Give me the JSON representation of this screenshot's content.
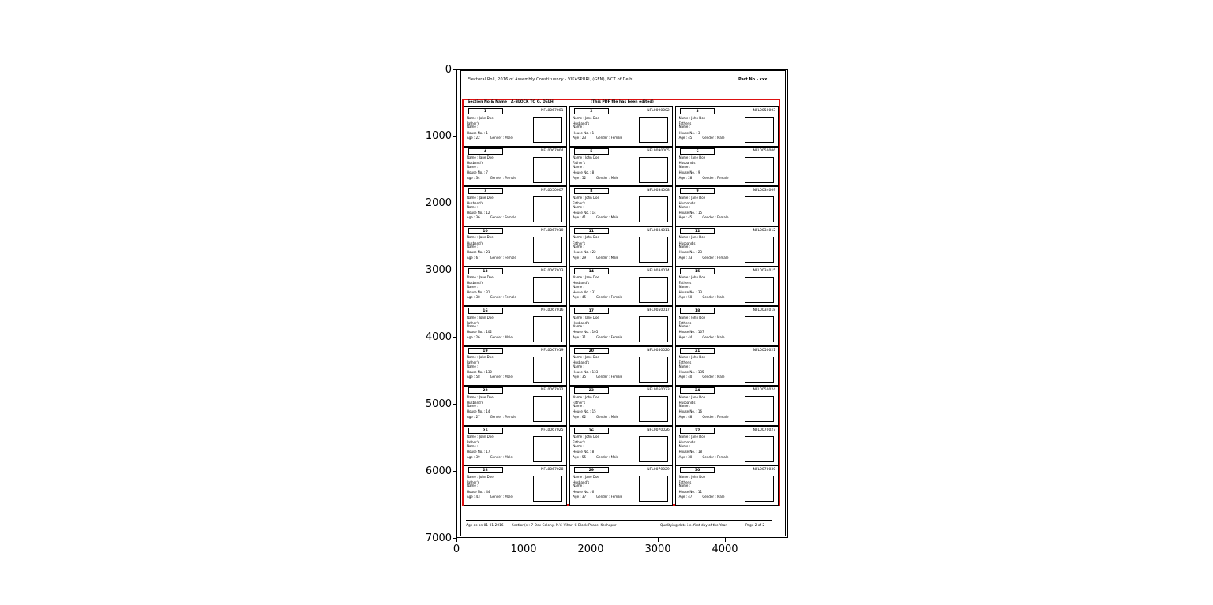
{
  "figure": {
    "x_ticks": [
      "0",
      "1000",
      "2000",
      "3000",
      "4000"
    ],
    "y_ticks": [
      "0",
      "1000",
      "2000",
      "3000",
      "4000",
      "5000",
      "6000",
      "7000"
    ],
    "annotation_color": "#dd0f0f"
  },
  "document": {
    "header": {
      "title": "Electoral Roll, 2016 of Assembly Constituency - VIKASPURI, (GEN), NCT of Delhi",
      "part_no": "Part No - xxx"
    },
    "section_bar": {
      "left": "Section No & Name : A-BLOCK TO G. DELHI",
      "center": "(This PDF file has been edited)"
    },
    "footer": {
      "left": "Age as on 01-01-2016",
      "mid": "Section(s): 7-Dev Colony, N.V. Vihar, C-Block Phase, Keshopur",
      "right": "Qualifying date i.e. first day of the Year",
      "page": "Page 2 of 2"
    },
    "cards": [
      {
        "s": "1",
        "e": "NFL0067001",
        "n": "Name : John Doe",
        "r1": "Father's",
        "r2": "Name :",
        "h": "House No. : 1",
        "a": "Age : 22",
        "g": "Gender : Male"
      },
      {
        "s": "2",
        "e": "NFL0090002",
        "n": "Name : Jane Doe",
        "r1": "Husband's",
        "r2": "Name :",
        "h": "House No. : 1",
        "a": "Age : 23",
        "g": "Gender : Female"
      },
      {
        "s": "3",
        "e": "NFL0050003",
        "n": "Name : John Doe",
        "r1": "Father's",
        "r2": "Name :",
        "h": "House No. : 3",
        "a": "Age : 45",
        "g": "Gender : Male"
      },
      {
        "s": "4",
        "e": "NFL0067004",
        "n": "Name : Jane Doe",
        "r1": "Husband's",
        "r2": "Name :",
        "h": "House No. : 7",
        "a": "Age : 34",
        "g": "Gender : Female"
      },
      {
        "s": "5",
        "e": "NFL0090005",
        "n": "Name : John Doe",
        "r1": "Father's",
        "r2": "Name :",
        "h": "House No. : 8",
        "a": "Age : 52",
        "g": "Gender : Male"
      },
      {
        "s": "6",
        "e": "NFL0050006",
        "n": "Name : Jane Doe",
        "r1": "Husband's",
        "r2": "Name :",
        "h": "House No. : 9",
        "a": "Age : 28",
        "g": "Gender : Female"
      },
      {
        "s": "7",
        "e": "NFL0050007",
        "n": "Name : Jane Doe",
        "r1": "Husband's",
        "r2": "Name :",
        "h": "House No. : 12",
        "a": "Age : 36",
        "g": "Gender : Female"
      },
      {
        "s": "8",
        "e": "NFL0034008",
        "n": "Name : John Doe",
        "r1": "Father's",
        "r2": "Name :",
        "h": "House No. : 14",
        "a": "Age : 41",
        "g": "Gender : Male"
      },
      {
        "s": "9",
        "e": "NFL0034009",
        "n": "Name : Jane Doe",
        "r1": "Husband's",
        "r2": "Name :",
        "h": "House No. : 15",
        "a": "Age : 45",
        "g": "Gender : Female"
      },
      {
        "s": "10",
        "e": "NFL0067010",
        "n": "Name : Jane Doe",
        "r1": "Husband's",
        "r2": "Name :",
        "h": "House No. : 21",
        "a": "Age : 67",
        "g": "Gender : Female"
      },
      {
        "s": "11",
        "e": "NFL0034011",
        "n": "Name : John Doe",
        "r1": "Father's",
        "r2": "Name :",
        "h": "House No. : 22",
        "a": "Age : 29",
        "g": "Gender : Male"
      },
      {
        "s": "12",
        "e": "NFL0034012",
        "n": "Name : Jane Doe",
        "r1": "Husband's",
        "r2": "Name :",
        "h": "House No. : 23",
        "a": "Age : 33",
        "g": "Gender : Female"
      },
      {
        "s": "13",
        "e": "NFL0067013",
        "n": "Name : Jane Doe",
        "r1": "Husband's",
        "r2": "Name :",
        "h": "House No. : 31",
        "a": "Age : 38",
        "g": "Gender : Female"
      },
      {
        "s": "14",
        "e": "NFL0034014",
        "n": "Name : Jane Doe",
        "r1": "Husband's",
        "r2": "Name :",
        "h": "House No. : 31",
        "a": "Age : 45",
        "g": "Gender : Female"
      },
      {
        "s": "15",
        "e": "NFL0034015",
        "n": "Name : John Doe",
        "r1": "Father's",
        "r2": "Name :",
        "h": "House No. : 33",
        "a": "Age : 50",
        "g": "Gender : Male"
      },
      {
        "s": "16",
        "e": "NFL0067016",
        "n": "Name : John Doe",
        "r1": "Father's",
        "r2": "Name :",
        "h": "House No. : 102",
        "a": "Age : 26",
        "g": "Gender : Male"
      },
      {
        "s": "17",
        "e": "NFL0050017",
        "n": "Name : Jane Doe",
        "r1": "Husband's",
        "r2": "Name :",
        "h": "House No. : 105",
        "a": "Age : 31",
        "g": "Gender : Female"
      },
      {
        "s": "18",
        "e": "NFL0034018",
        "n": "Name : John Doe",
        "r1": "Father's",
        "r2": "Name :",
        "h": "House No. : 107",
        "a": "Age : 44",
        "g": "Gender : Male"
      },
      {
        "s": "19",
        "e": "NFL0067019",
        "n": "Name : John Doe",
        "r1": "Father's",
        "r2": "Name :",
        "h": "House No. : 130",
        "a": "Age : 58",
        "g": "Gender : Male"
      },
      {
        "s": "20",
        "e": "NFL0050020",
        "n": "Name : Jane Doe",
        "r1": "Husband's",
        "r2": "Name :",
        "h": "House No. : 133",
        "a": "Age : 35",
        "g": "Gender : Female"
      },
      {
        "s": "21",
        "e": "NFL0050021",
        "n": "Name : John Doe",
        "r1": "Father's",
        "r2": "Name :",
        "h": "House No. : 135",
        "a": "Age : 40",
        "g": "Gender : Male"
      },
      {
        "s": "22",
        "e": "NFL0067022",
        "n": "Name : Jane Doe",
        "r1": "Husband's",
        "r2": "Name :",
        "h": "House No. : 14",
        "a": "Age : 27",
        "g": "Gender : Female"
      },
      {
        "s": "23",
        "e": "NFL0050023",
        "n": "Name : John Doe",
        "r1": "Father's",
        "r2": "Name :",
        "h": "House No. : 15",
        "a": "Age : 62",
        "g": "Gender : Male"
      },
      {
        "s": "24",
        "e": "NFL0050024",
        "n": "Name : Jane Doe",
        "r1": "Husband's",
        "r2": "Name :",
        "h": "House No. : 16",
        "a": "Age : 48",
        "g": "Gender : Female"
      },
      {
        "s": "25",
        "e": "NFL0067025",
        "n": "Name : John Doe",
        "r1": "Father's",
        "r2": "Name :",
        "h": "House No. : 17",
        "a": "Age : 39",
        "g": "Gender : Male"
      },
      {
        "s": "26",
        "e": "NFL0070026",
        "n": "Name : John Doe",
        "r1": "Father's",
        "r2": "Name :",
        "h": "House No. : 8",
        "a": "Age : 55",
        "g": "Gender : Male"
      },
      {
        "s": "27",
        "e": "NFL0070027",
        "n": "Name : Jane Doe",
        "r1": "Husband's",
        "r2": "Name :",
        "h": "House No. : 18",
        "a": "Age : 30",
        "g": "Gender : Female"
      },
      {
        "s": "28",
        "e": "NFL0067028",
        "n": "Name : John Doe",
        "r1": "Father's",
        "r2": "Name :",
        "h": "House No. : 44",
        "a": "Age : 43",
        "g": "Gender : Male"
      },
      {
        "s": "29",
        "e": "NFL0070029",
        "n": "Name : Jane Doe",
        "r1": "Husband's",
        "r2": "Name :",
        "h": "House No. : 6",
        "a": "Age : 37",
        "g": "Gender : Female"
      },
      {
        "s": "30",
        "e": "NFL0070030",
        "n": "Name : John Doe",
        "r1": "Father's",
        "r2": "Name :",
        "h": "House No. : 11",
        "a": "Age : 47",
        "g": "Gender : Male"
      }
    ]
  }
}
